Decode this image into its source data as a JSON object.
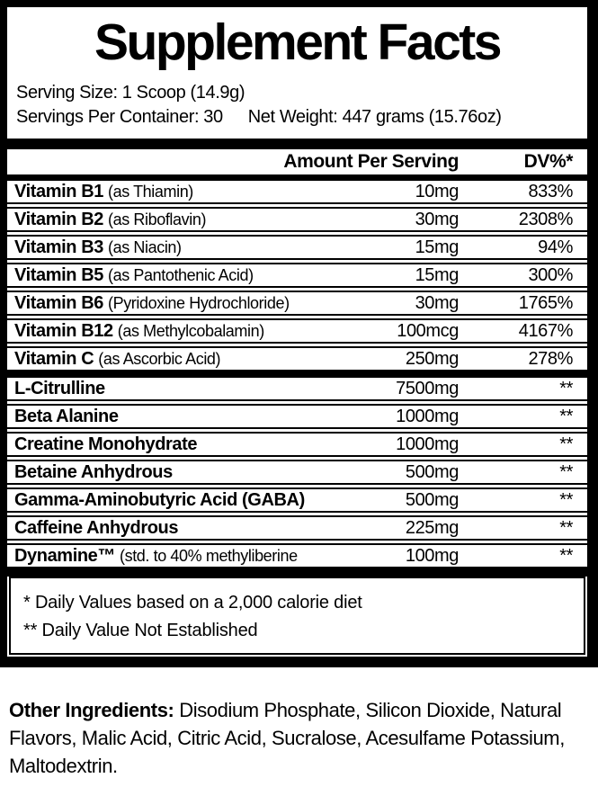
{
  "label": {
    "title": "Supplement Facts",
    "serving": {
      "size": "Serving Size: 1 Scoop (14.9g)",
      "per_container": "Servings Per Container: 30",
      "net_weight": "Net Weight: 447 grams (15.76oz)"
    },
    "header": {
      "amount": "Amount Per Serving",
      "dv": "DV%*"
    },
    "rows": [
      {
        "name": "Vitamin B1",
        "note": "(as Thiamin)",
        "amount": "10mg",
        "dv": "833%"
      },
      {
        "name": "Vitamin B2",
        "note": "(as Riboflavin)",
        "amount": "30mg",
        "dv": "2308%"
      },
      {
        "name": "Vitamin B3",
        "note": "(as Niacin)",
        "amount": "15mg",
        "dv": "94%"
      },
      {
        "name": "Vitamin B5",
        "note": "(as Pantothenic Acid)",
        "amount": "15mg",
        "dv": "300%"
      },
      {
        "name": "Vitamin B6",
        "note": "(Pyridoxine Hydrochloride)",
        "amount": "30mg",
        "dv": "1765%"
      },
      {
        "name": "Vitamin B12",
        "note": "(as Methylcobalamin)",
        "amount": "100mcg",
        "dv": "4167%"
      },
      {
        "name": "Vitamin C",
        "note": "(as Ascorbic Acid)",
        "amount": "250mg",
        "dv": "278%"
      },
      {
        "name": "L-Citrulline",
        "note": "",
        "amount": "7500mg",
        "dv": "**"
      },
      {
        "name": "Beta Alanine",
        "note": "",
        "amount": "1000mg",
        "dv": "**"
      },
      {
        "name": "Creatine Monohydrate",
        "note": "",
        "amount": "1000mg",
        "dv": "**"
      },
      {
        "name": "Betaine Anhydrous",
        "note": "",
        "amount": "500mg",
        "dv": "**"
      },
      {
        "name": "Gamma-Aminobutyric Acid (GABA)",
        "note": "",
        "amount": "500mg",
        "dv": "**"
      },
      {
        "name": "Caffeine Anhydrous",
        "note": "",
        "amount": "225mg",
        "dv": "**"
      },
      {
        "name": "Dynamine™",
        "note": "(std. to 40% methyliberine",
        "amount": "100mg",
        "dv": "**"
      }
    ],
    "footnotes": [
      "* Daily Values based on a 2,000 calorie diet",
      "** Daily Value Not Established"
    ]
  },
  "other_ingredients": {
    "label": "Other Ingredients:",
    "text": " Disodium Phosphate, Silicon Dioxide, Natural Flavors, Malic Acid, Citric Acid, Sucralose, Acesulfame Potassium, Maltodextrin."
  },
  "colors": {
    "ink": "#000000",
    "paper": "#ffffff"
  }
}
